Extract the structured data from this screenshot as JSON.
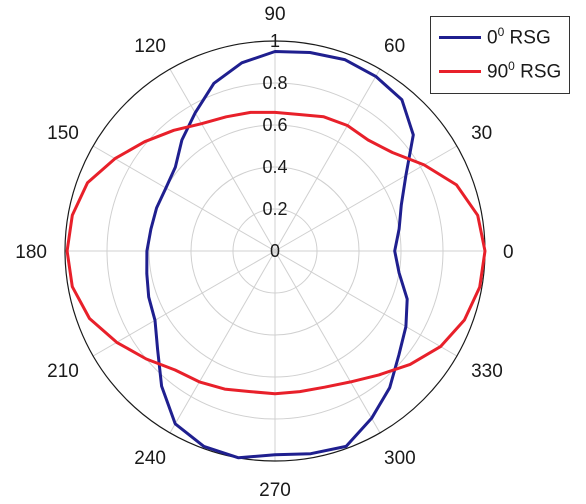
{
  "chart_data": {
    "type": "polar-line",
    "angle_ticks": [
      "0",
      "30",
      "60",
      "90",
      "120",
      "150",
      "180",
      "210",
      "240",
      "270",
      "300",
      "330"
    ],
    "radial_ticks": [
      "0",
      "0.2",
      "0.4",
      "0.6",
      "0.8",
      "1"
    ],
    "rlim": [
      0,
      1
    ],
    "legend_position": "top-right",
    "series": [
      {
        "name": "00 RSG",
        "legend_base": "0",
        "legend_sup": "0",
        "legend_suffix": " RSG",
        "color": "#1f1f8f",
        "theta": [
          0,
          10,
          20,
          30,
          40,
          50,
          60,
          70,
          80,
          90,
          100,
          110,
          120,
          130,
          140,
          150,
          160,
          170,
          180,
          190,
          200,
          210,
          220,
          230,
          240,
          250,
          260,
          270,
          280,
          290,
          300,
          310,
          320,
          330,
          340,
          350
        ],
        "r": [
          0.57,
          0.6,
          0.64,
          0.72,
          0.86,
          0.94,
          0.96,
          0.97,
          0.96,
          0.95,
          0.91,
          0.85,
          0.76,
          0.69,
          0.62,
          0.6,
          0.6,
          0.6,
          0.61,
          0.62,
          0.64,
          0.66,
          0.73,
          0.84,
          0.95,
          0.99,
          1.0,
          0.97,
          0.98,
          0.99,
          0.92,
          0.85,
          0.77,
          0.72,
          0.67,
          0.6
        ]
      },
      {
        "name": "900 RSG",
        "legend_base": "90",
        "legend_sup": "0",
        "legend_suffix": " RSG",
        "color": "#e8202a",
        "theta": [
          0,
          10,
          20,
          30,
          40,
          50,
          60,
          70,
          80,
          90,
          100,
          110,
          120,
          130,
          140,
          150,
          160,
          170,
          180,
          190,
          200,
          210,
          220,
          230,
          240,
          250,
          260,
          270,
          280,
          290,
          300,
          310,
          320,
          330,
          340,
          350
        ],
        "r": [
          1.0,
          0.98,
          0.92,
          0.82,
          0.73,
          0.69,
          0.69,
          0.68,
          0.66,
          0.66,
          0.67,
          0.68,
          0.7,
          0.75,
          0.81,
          0.88,
          0.95,
          0.98,
          0.99,
          0.98,
          0.94,
          0.87,
          0.8,
          0.74,
          0.72,
          0.7,
          0.68,
          0.68,
          0.68,
          0.69,
          0.72,
          0.77,
          0.84,
          0.91,
          0.96,
          0.99
        ]
      }
    ]
  }
}
